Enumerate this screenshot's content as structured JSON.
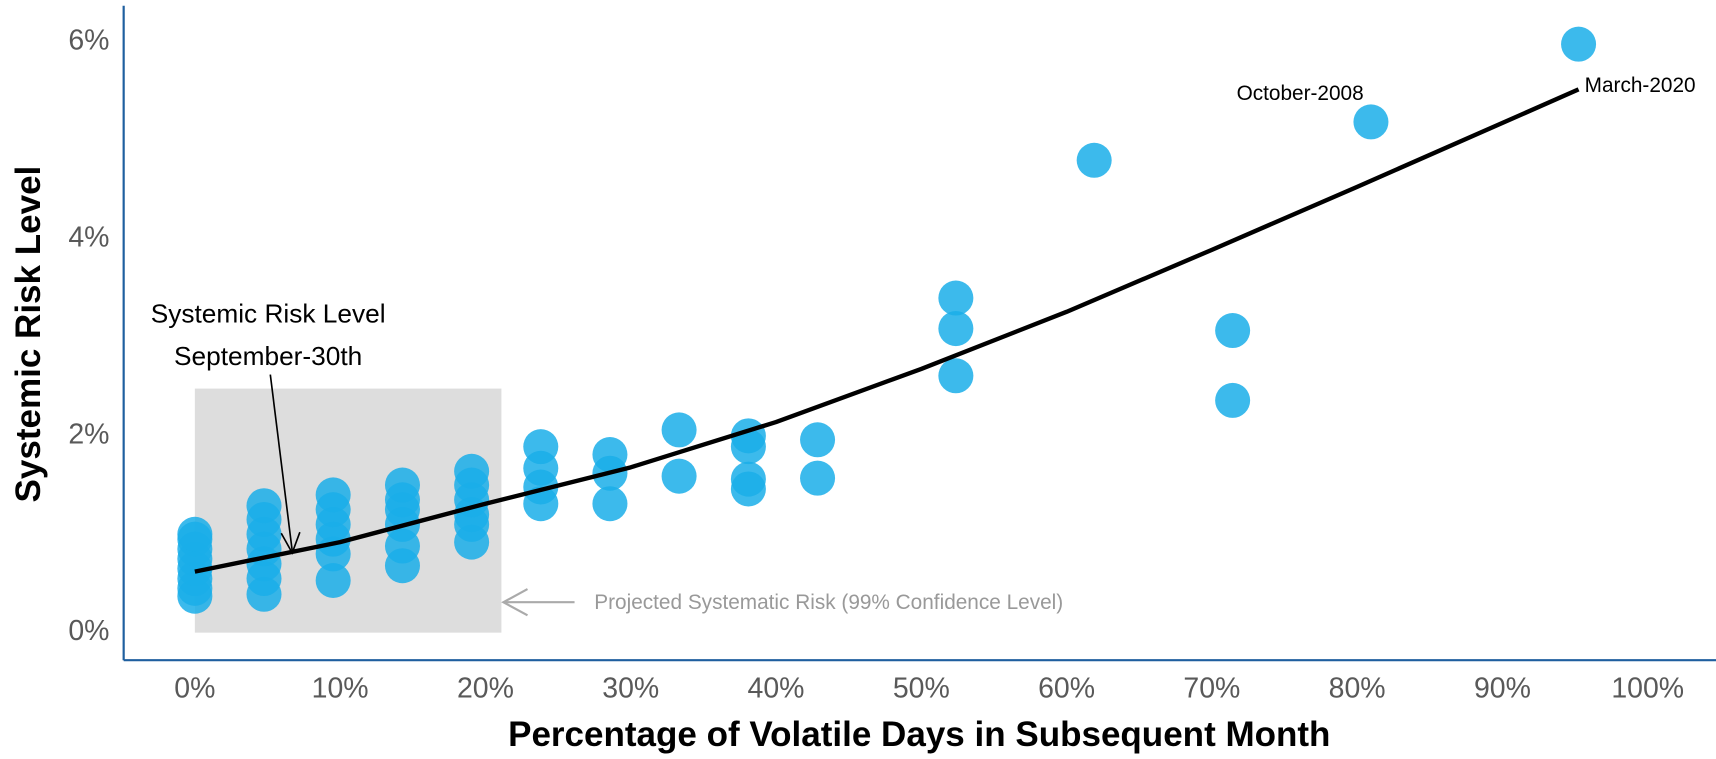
{
  "chart_data": {
    "type": "scatter",
    "x_label": "Percentage of Volatile Days in Subsequent Month",
    "y_label": "Systemic Risk Level",
    "xlim": [
      -4.9,
      104.7
    ],
    "ylim": [
      -0.28,
      6.37
    ],
    "xticks": [
      {
        "value": 0,
        "label": "0%"
      },
      {
        "value": 10,
        "label": "10%"
      },
      {
        "value": 20,
        "label": "20%"
      },
      {
        "value": 30,
        "label": "30%"
      },
      {
        "value": 40,
        "label": "40%"
      },
      {
        "value": 50,
        "label": "50%"
      },
      {
        "value": 60,
        "label": "60%"
      },
      {
        "value": 70,
        "label": "70%"
      },
      {
        "value": 80,
        "label": "80%"
      },
      {
        "value": 90,
        "label": "90%"
      },
      {
        "value": 100,
        "label": "100%"
      }
    ],
    "yticks": [
      {
        "value": 0,
        "label": "0%"
      },
      {
        "value": 2,
        "label": "2%"
      },
      {
        "value": 4,
        "label": "4%"
      },
      {
        "value": 6,
        "label": "6%"
      }
    ],
    "grid": false,
    "series": [
      {
        "color": "#1aaee9",
        "x": [
          0,
          0,
          0,
          0,
          0,
          0,
          0,
          0,
          4.76,
          4.76,
          4.76,
          4.76,
          4.76,
          4.76,
          4.76,
          9.52,
          9.52,
          9.52,
          9.52,
          9.52,
          9.52,
          14.29,
          14.29,
          14.29,
          14.29,
          14.29,
          14.29,
          19.05,
          19.05,
          19.05,
          19.05,
          19.05,
          19.05,
          23.81,
          23.81,
          23.81,
          23.81,
          28.57,
          28.57,
          28.57,
          33.33,
          33.33,
          38.1,
          38.1,
          38.1,
          38.1,
          42.86,
          42.86,
          52.38,
          52.38,
          52.38,
          61.9,
          71.43,
          71.43,
          80.95,
          95.24
        ],
        "values": [
          0.37,
          0.45,
          0.55,
          0.65,
          0.75,
          0.85,
          0.95,
          1.0,
          0.39,
          0.55,
          0.7,
          0.85,
          1.0,
          1.15,
          1.29,
          0.53,
          0.8,
          0.95,
          1.1,
          1.25,
          1.4,
          0.68,
          0.88,
          1.1,
          1.25,
          1.35,
          1.5,
          0.92,
          1.1,
          1.2,
          1.35,
          1.5,
          1.64,
          1.31,
          1.48,
          1.67,
          1.89,
          1.31,
          1.62,
          1.81,
          1.59,
          2.06,
          1.46,
          1.56,
          1.89,
          2.0,
          1.57,
          1.96,
          2.61,
          3.09,
          3.4,
          4.8,
          2.36,
          3.07,
          5.19,
          5.98
        ]
      },
      {
        "type": "line",
        "color": "#000000",
        "x": [
          0,
          10,
          20,
          30,
          40,
          50,
          60,
          70,
          80,
          95.24
        ],
        "values": [
          0.62,
          0.92,
          1.31,
          1.68,
          2.14,
          2.68,
          3.26,
          3.89,
          4.53,
          5.52
        ]
      }
    ],
    "band": {
      "color": "#dddddd",
      "xlim": [
        0,
        21.1
      ],
      "ylim": [
        0,
        2.48
      ]
    },
    "annotations": [
      "Systemic Risk Level",
      "September-30th",
      "Projected Systematic Risk (99% Confidence Level)",
      "October-2008",
      "March-2020"
    ]
  }
}
